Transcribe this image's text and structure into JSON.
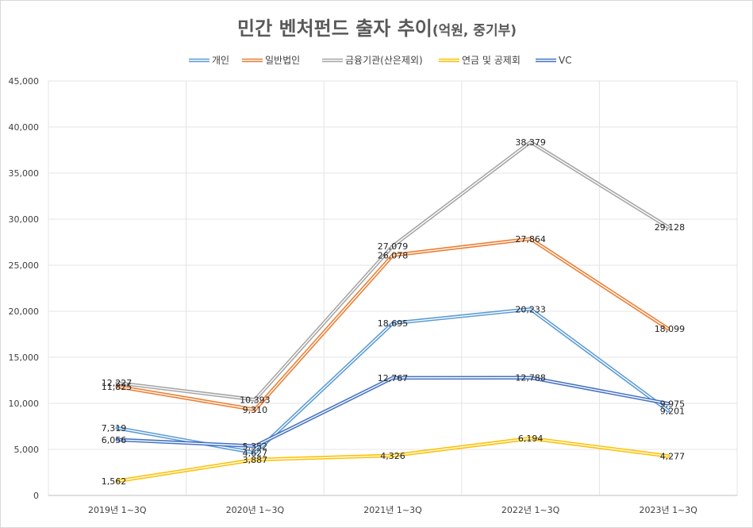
{
  "chart_data": {
    "type": "line",
    "title": "민간 벤처펀드 출자 추이",
    "subtitle": "(억원, 중기부)",
    "categories": [
      "2019년 1~3Q",
      "2020년 1~3Q",
      "2021년 1~3Q",
      "2022년 1~3Q",
      "2023년 1~3Q"
    ],
    "ylim": [
      0,
      45000
    ],
    "yticks": [
      0,
      5000,
      10000,
      15000,
      20000,
      25000,
      30000,
      35000,
      40000,
      45000
    ],
    "ytick_labels": [
      "0",
      "5,000",
      "10,000",
      "15,000",
      "20,000",
      "25,000",
      "30,000",
      "35,000",
      "40,000",
      "45,000"
    ],
    "legend_position": "top-center",
    "grid": true,
    "series": [
      {
        "name": "개인",
        "color": "#5b9bd5",
        "values": [
          7319,
          4627,
          18695,
          20233,
          9201
        ],
        "labels": [
          "7,319",
          "4,627",
          "18,695",
          "20,233",
          "9,201"
        ]
      },
      {
        "name": "일반법인",
        "color": "#ed7d31",
        "values": [
          11825,
          9310,
          26078,
          27864,
          18099
        ],
        "labels": [
          "11,825",
          "9,310",
          "26,078",
          "27,864",
          "18,099"
        ]
      },
      {
        "name": "금융기관(산은제외)",
        "color": "#a5a5a5",
        "values": [
          12227,
          10393,
          27079,
          38379,
          29128
        ],
        "labels": [
          "12,227",
          "10,393",
          "27,079",
          "38,379",
          "29,128"
        ]
      },
      {
        "name": "연금 및 공제회",
        "color": "#ffc000",
        "values": [
          1562,
          3887,
          4326,
          6194,
          4277
        ],
        "labels": [
          "1,562",
          "3,887",
          "4,326",
          "6,194",
          "4,277"
        ]
      },
      {
        "name": "VC",
        "color": "#4472c4",
        "values": [
          6056,
          5352,
          12767,
          12788,
          9975
        ],
        "labels": [
          "6,056",
          "5,352",
          "12,767",
          "12,788",
          "9,975"
        ]
      }
    ]
  }
}
